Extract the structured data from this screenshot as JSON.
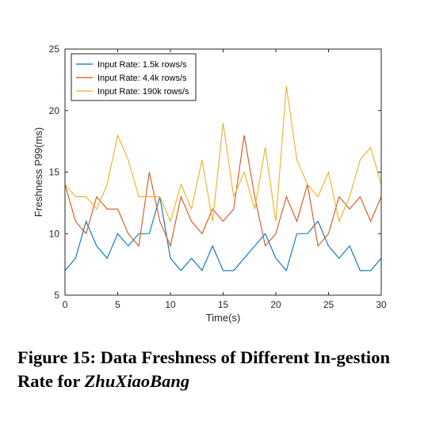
{
  "figure": {
    "caption_prefix": "Figure 15: Data Freshness of Different In-gestion Rate for ",
    "caption_emph": "ZhuXiaoBang"
  },
  "chart_data": {
    "type": "line",
    "xlabel": "Time(s)",
    "ylabel": "Freshness P99(ms)",
    "xlim": [
      0,
      30
    ],
    "ylim": [
      5,
      25
    ],
    "xticks": [
      0,
      5,
      10,
      15,
      20,
      25,
      30
    ],
    "yticks": [
      5,
      10,
      15,
      20,
      25
    ],
    "grid": false,
    "legend_position": "top-left",
    "x": [
      0,
      1,
      2,
      3,
      4,
      5,
      6,
      7,
      8,
      9,
      10,
      11,
      12,
      13,
      14,
      15,
      16,
      17,
      18,
      19,
      20,
      21,
      22,
      23,
      24,
      25,
      26,
      27,
      28,
      29,
      30
    ],
    "series": [
      {
        "name": "Input Rate: 1.5k rows/s",
        "color": "#0072BD",
        "values": [
          7,
          8,
          11,
          9,
          8,
          10,
          9,
          10,
          10,
          13,
          8,
          7,
          8,
          7,
          9,
          7,
          7,
          8,
          9,
          10,
          8,
          7,
          10,
          10,
          11,
          9,
          8,
          9,
          7,
          7,
          8
        ]
      },
      {
        "name": "Input Rate: 4.4k rows/s",
        "color": "#D95319",
        "values": [
          14,
          11,
          10,
          13,
          12,
          12,
          10,
          9,
          15,
          11,
          9,
          13,
          11,
          10,
          12,
          11,
          12,
          18,
          13,
          9,
          10,
          13,
          11,
          14,
          9,
          10,
          13,
          12,
          13,
          11,
          13
        ]
      },
      {
        "name": "Input Rate: 190k rows/s",
        "color": "#EDB120",
        "values": [
          14,
          13,
          13,
          12,
          14,
          18,
          16,
          13,
          13,
          13,
          11,
          14,
          12,
          16,
          11,
          19,
          13,
          15,
          12,
          17,
          11,
          22,
          16,
          14,
          13,
          15,
          11,
          13,
          16,
          17,
          14
        ]
      }
    ]
  }
}
